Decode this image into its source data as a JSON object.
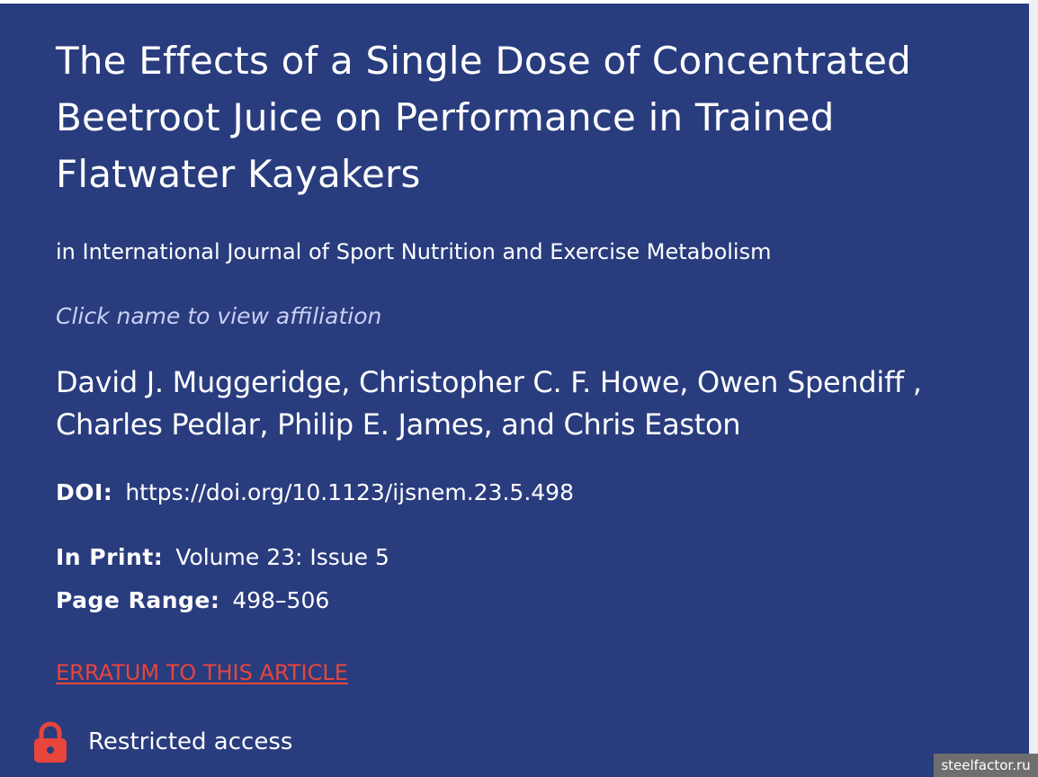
{
  "article": {
    "title": "The Effects of a Single Dose of Concentrated Beetroot Juice on Performance in Trained Flatwater Kayakers",
    "journal": "in International Journal of Sport Nutrition and Exercise Metabolism",
    "affiliation_hint": "Click name to view affiliation",
    "authors": "David J. Muggeridge, Christopher C. F. Howe, Owen Spendiff , Charles Pedlar, Philip E. James, and Chris Easton",
    "doi_label": "DOI:",
    "doi_value": "https://doi.org/10.1123/ijsnem.23.5.498",
    "print_label": "In Print:",
    "print_value": "Volume 23: Issue 5",
    "range_label": "Page Range:",
    "range_value": "498–506",
    "erratum_link": "ERRATUM TO THIS ARTICLE",
    "access_label": "Restricted access",
    "access_icon": "lock-icon"
  },
  "watermark": "steelfactor.ru",
  "colors": {
    "panel_bg": "#293c7e",
    "text": "#ffffff",
    "hint": "#c9d0f3",
    "erratum": "#e8453c",
    "lock": "#e8453c"
  }
}
